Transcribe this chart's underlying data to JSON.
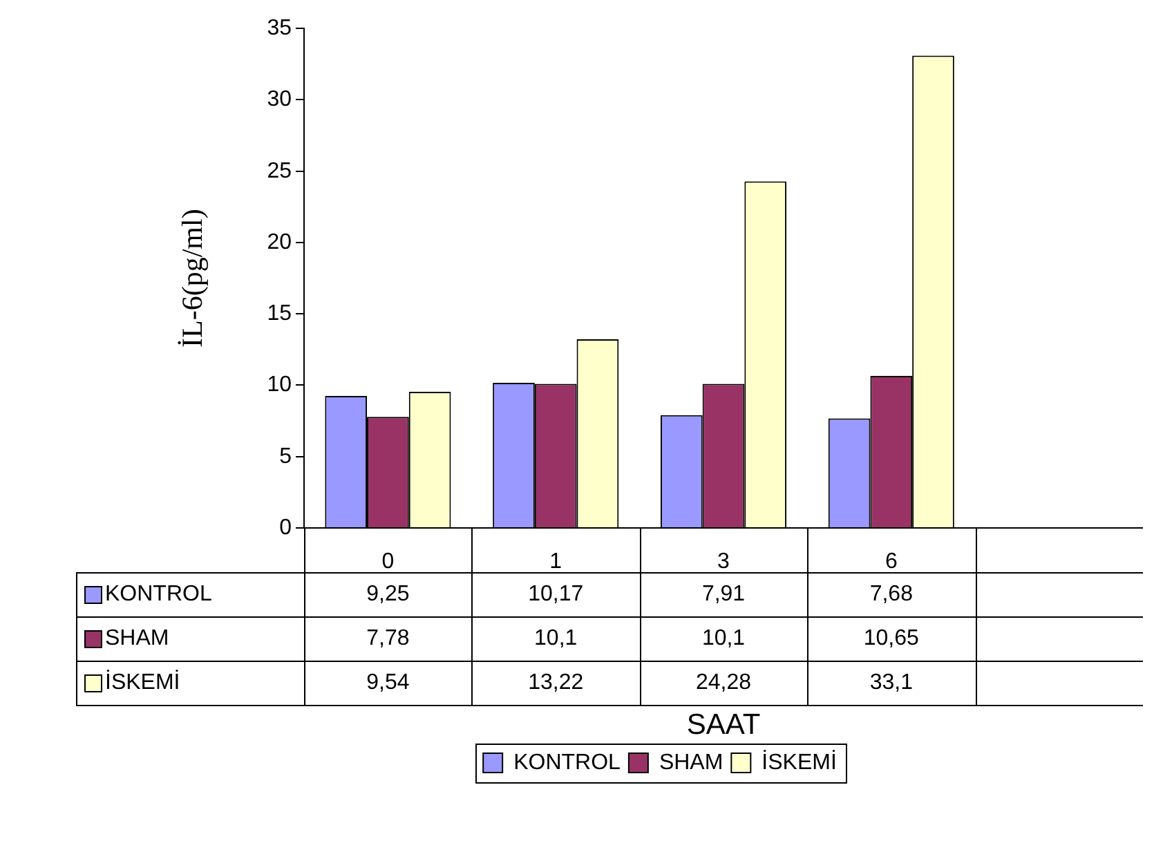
{
  "chart_data": {
    "type": "bar",
    "ylabel": "İL-6(pg/ml)",
    "xlabel": "SAAT",
    "categories": [
      "0",
      "1",
      "3",
      "6",
      null
    ],
    "series": [
      {
        "name": "KONTROL",
        "color": "#9999ff",
        "values": [
          9.25,
          10.17,
          7.91,
          7.68,
          null
        ],
        "value_labels": [
          "9,25",
          "10,17",
          "7,91",
          "7,68",
          null
        ]
      },
      {
        "name": "SHAM",
        "color": "#993366",
        "values": [
          7.78,
          10.1,
          10.1,
          10.65,
          null
        ],
        "value_labels": [
          "7,78",
          "10,1",
          "10,1",
          "10,65",
          null
        ]
      },
      {
        "name": "İSKEMİ",
        "color": "#ffffcc",
        "values": [
          9.54,
          13.22,
          24.28,
          33.1,
          null
        ],
        "value_labels": [
          "9,54",
          "13,22",
          "24,28",
          "33,1",
          null
        ]
      }
    ],
    "ylim": [
      0,
      35
    ],
    "yticks": [
      0,
      5,
      10,
      15,
      20,
      25,
      30,
      35
    ],
    "grid": false,
    "legend": "bottom"
  }
}
